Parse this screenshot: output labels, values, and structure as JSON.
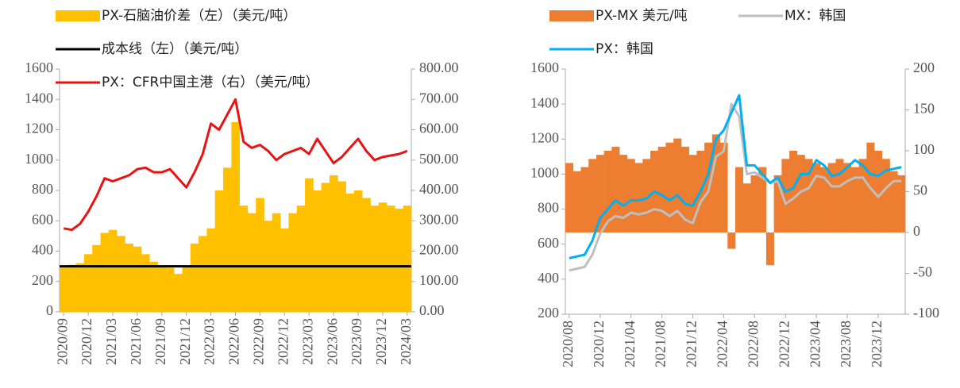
{
  "chart_data": [
    {
      "type": "bar_line",
      "categories": [
        "2020/09",
        null,
        null,
        "2020/12",
        null,
        null,
        "2021/03",
        null,
        null,
        "2021/06",
        null,
        null,
        "2021/09",
        null,
        null,
        "2021/12",
        null,
        null,
        "2022/03",
        null,
        null,
        "2022/06",
        null,
        null,
        "2022/09",
        null,
        null,
        "2022/12",
        null,
        null,
        "2023/03",
        null,
        null,
        "2023/06",
        null,
        null,
        "2023/09",
        null,
        null,
        "2023/12",
        null,
        null,
        "2024/03"
      ],
      "series": [
        {
          "name": "PX-石脑油价差（左）（美元/吨）",
          "kind": "bar",
          "color": "#ffc000",
          "values": [
            300,
            310,
            320,
            380,
            440,
            520,
            540,
            500,
            450,
            430,
            380,
            330,
            300,
            290,
            250,
            300,
            450,
            500,
            550,
            800,
            950,
            1250,
            700,
            650,
            750,
            600,
            650,
            550,
            650,
            700,
            880,
            800,
            850,
            900,
            860,
            780,
            800,
            750,
            700,
            720,
            700,
            680,
            700
          ]
        },
        {
          "name": "成本线（左）（美元/吨）",
          "kind": "hline",
          "color": "#000000",
          "value": 300
        },
        {
          "name": "PX：CFR中国主港（右）（美元/吨）",
          "kind": "line",
          "axis": "y2",
          "color": "#e81313",
          "values": [
            275,
            270,
            290,
            330,
            380,
            440,
            430,
            440,
            450,
            470,
            475,
            460,
            460,
            470,
            440,
            410,
            460,
            520,
            620,
            600,
            650,
            700,
            560,
            540,
            550,
            530,
            500,
            520,
            530,
            540,
            520,
            570,
            530,
            490,
            510,
            540,
            570,
            530,
            500,
            510,
            515,
            520,
            530
          ]
        }
      ],
      "ylim": [
        0,
        1600
      ],
      "yticks": [
        0,
        200,
        400,
        600,
        800,
        1000,
        1200,
        1400,
        1600
      ],
      "y2lim": [
        0,
        800
      ],
      "y2ticks": [
        {
          "value": 0,
          "label": "0.00"
        },
        {
          "value": 100,
          "label": "100.00"
        },
        {
          "value": 200,
          "label": "200.00"
        },
        {
          "value": 300,
          "label": "300.00"
        },
        {
          "value": 400,
          "label": "400.00"
        },
        {
          "value": 500,
          "label": "500.00"
        },
        {
          "value": 600,
          "label": "600.00"
        },
        {
          "value": 700,
          "label": "700.00"
        },
        {
          "value": 800,
          "label": "800.00"
        }
      ]
    },
    {
      "type": "bar_line",
      "categories": [
        "2020/08",
        null,
        null,
        null,
        "2020/12",
        null,
        null,
        null,
        "2021/04",
        null,
        null,
        null,
        "2021/08",
        null,
        null,
        null,
        "2021/12",
        null,
        null,
        null,
        "2022/04",
        null,
        null,
        null,
        "2022/08",
        null,
        null,
        null,
        "2022/12",
        null,
        null,
        null,
        "2023/04",
        null,
        null,
        null,
        "2023/08",
        null,
        null,
        null,
        "2023/12",
        null,
        null,
        null
      ],
      "series": [
        {
          "name": "PX-MX 美元/吨",
          "kind": "bar",
          "axis": "y2",
          "color": "#ed7d31",
          "values": [
            85,
            75,
            80,
            90,
            95,
            100,
            105,
            95,
            90,
            85,
            90,
            100,
            105,
            110,
            115,
            105,
            95,
            100,
            110,
            120,
            110,
            -20,
            80,
            60,
            70,
            80,
            -40,
            70,
            90,
            100,
            95,
            90,
            85,
            80,
            85,
            90,
            85,
            80,
            90,
            110,
            100,
            90,
            75,
            70
          ]
        },
        {
          "name": "MX：韩国",
          "kind": "line",
          "color": "#bfbfbf",
          "values": [
            450,
            460,
            470,
            540,
            660,
            730,
            760,
            750,
            780,
            770,
            780,
            800,
            790,
            760,
            790,
            740,
            720,
            840,
            900,
            1100,
            1130,
            1400,
            1330,
            1000,
            1010,
            980,
            950,
            960,
            830,
            860,
            900,
            920,
            990,
            980,
            930,
            930,
            960,
            980,
            980,
            920,
            870,
            920,
            960,
            960
          ]
        },
        {
          "name": "PX：韩国",
          "kind": "line",
          "color": "#00b0f0",
          "values": [
            520,
            530,
            540,
            620,
            750,
            800,
            850,
            820,
            850,
            850,
            860,
            900,
            880,
            850,
            880,
            830,
            820,
            900,
            1000,
            1200,
            1250,
            1350,
            1450,
            1050,
            1050,
            1000,
            950,
            980,
            900,
            920,
            1000,
            1000,
            1080,
            1050,
            990,
            1000,
            1040,
            1080,
            1050,
            1000,
            990,
            1020,
            1030,
            1040
          ]
        }
      ],
      "ylim": [
        200,
        1600
      ],
      "yticks": [
        200,
        400,
        600,
        800,
        1000,
        1200,
        1400,
        1600
      ],
      "y2lim": [
        -100,
        200
      ],
      "y2ticks": [
        -100,
        -50,
        0,
        50,
        100,
        150,
        200
      ]
    }
  ]
}
